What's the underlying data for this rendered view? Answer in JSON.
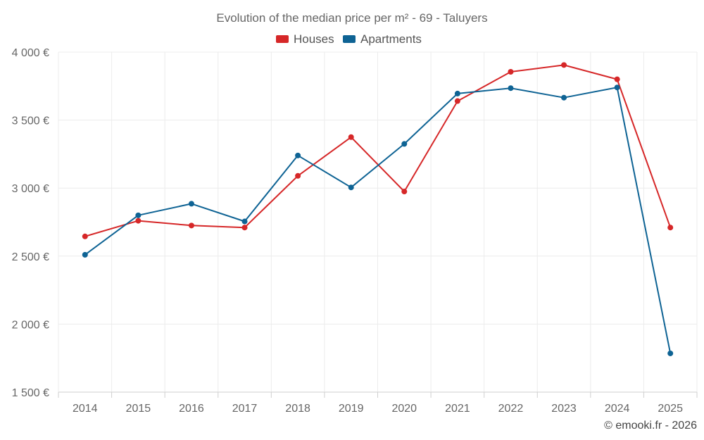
{
  "chart_data": {
    "type": "line",
    "title": "Evolution of the median price per m² - 69 - Taluyers",
    "categories": [
      "2014",
      "2015",
      "2016",
      "2017",
      "2018",
      "2019",
      "2020",
      "2021",
      "2022",
      "2023",
      "2024",
      "2025"
    ],
    "series": [
      {
        "name": "Houses",
        "color": "#d62728",
        "values": [
          2645,
          2760,
          2725,
          2710,
          3090,
          3375,
          2975,
          3640,
          3855,
          3905,
          3800,
          2710
        ]
      },
      {
        "name": "Apartments",
        "color": "#0e6394",
        "values": [
          2510,
          2800,
          2885,
          2755,
          3240,
          3005,
          3325,
          3695,
          3735,
          3665,
          3740,
          1785
        ]
      }
    ],
    "ylim": [
      1500,
      4000
    ],
    "yticks": [
      1500,
      2000,
      2500,
      3000,
      3500,
      4000
    ],
    "ytick_labels": [
      "1 500 €",
      "2 000 €",
      "2 500 €",
      "3 000 €",
      "3 500 €",
      "4 000 €"
    ],
    "xlabel": "",
    "ylabel": "",
    "legend_position": "top-center",
    "grid": true
  },
  "credit": "© emooki.fr - 2026"
}
